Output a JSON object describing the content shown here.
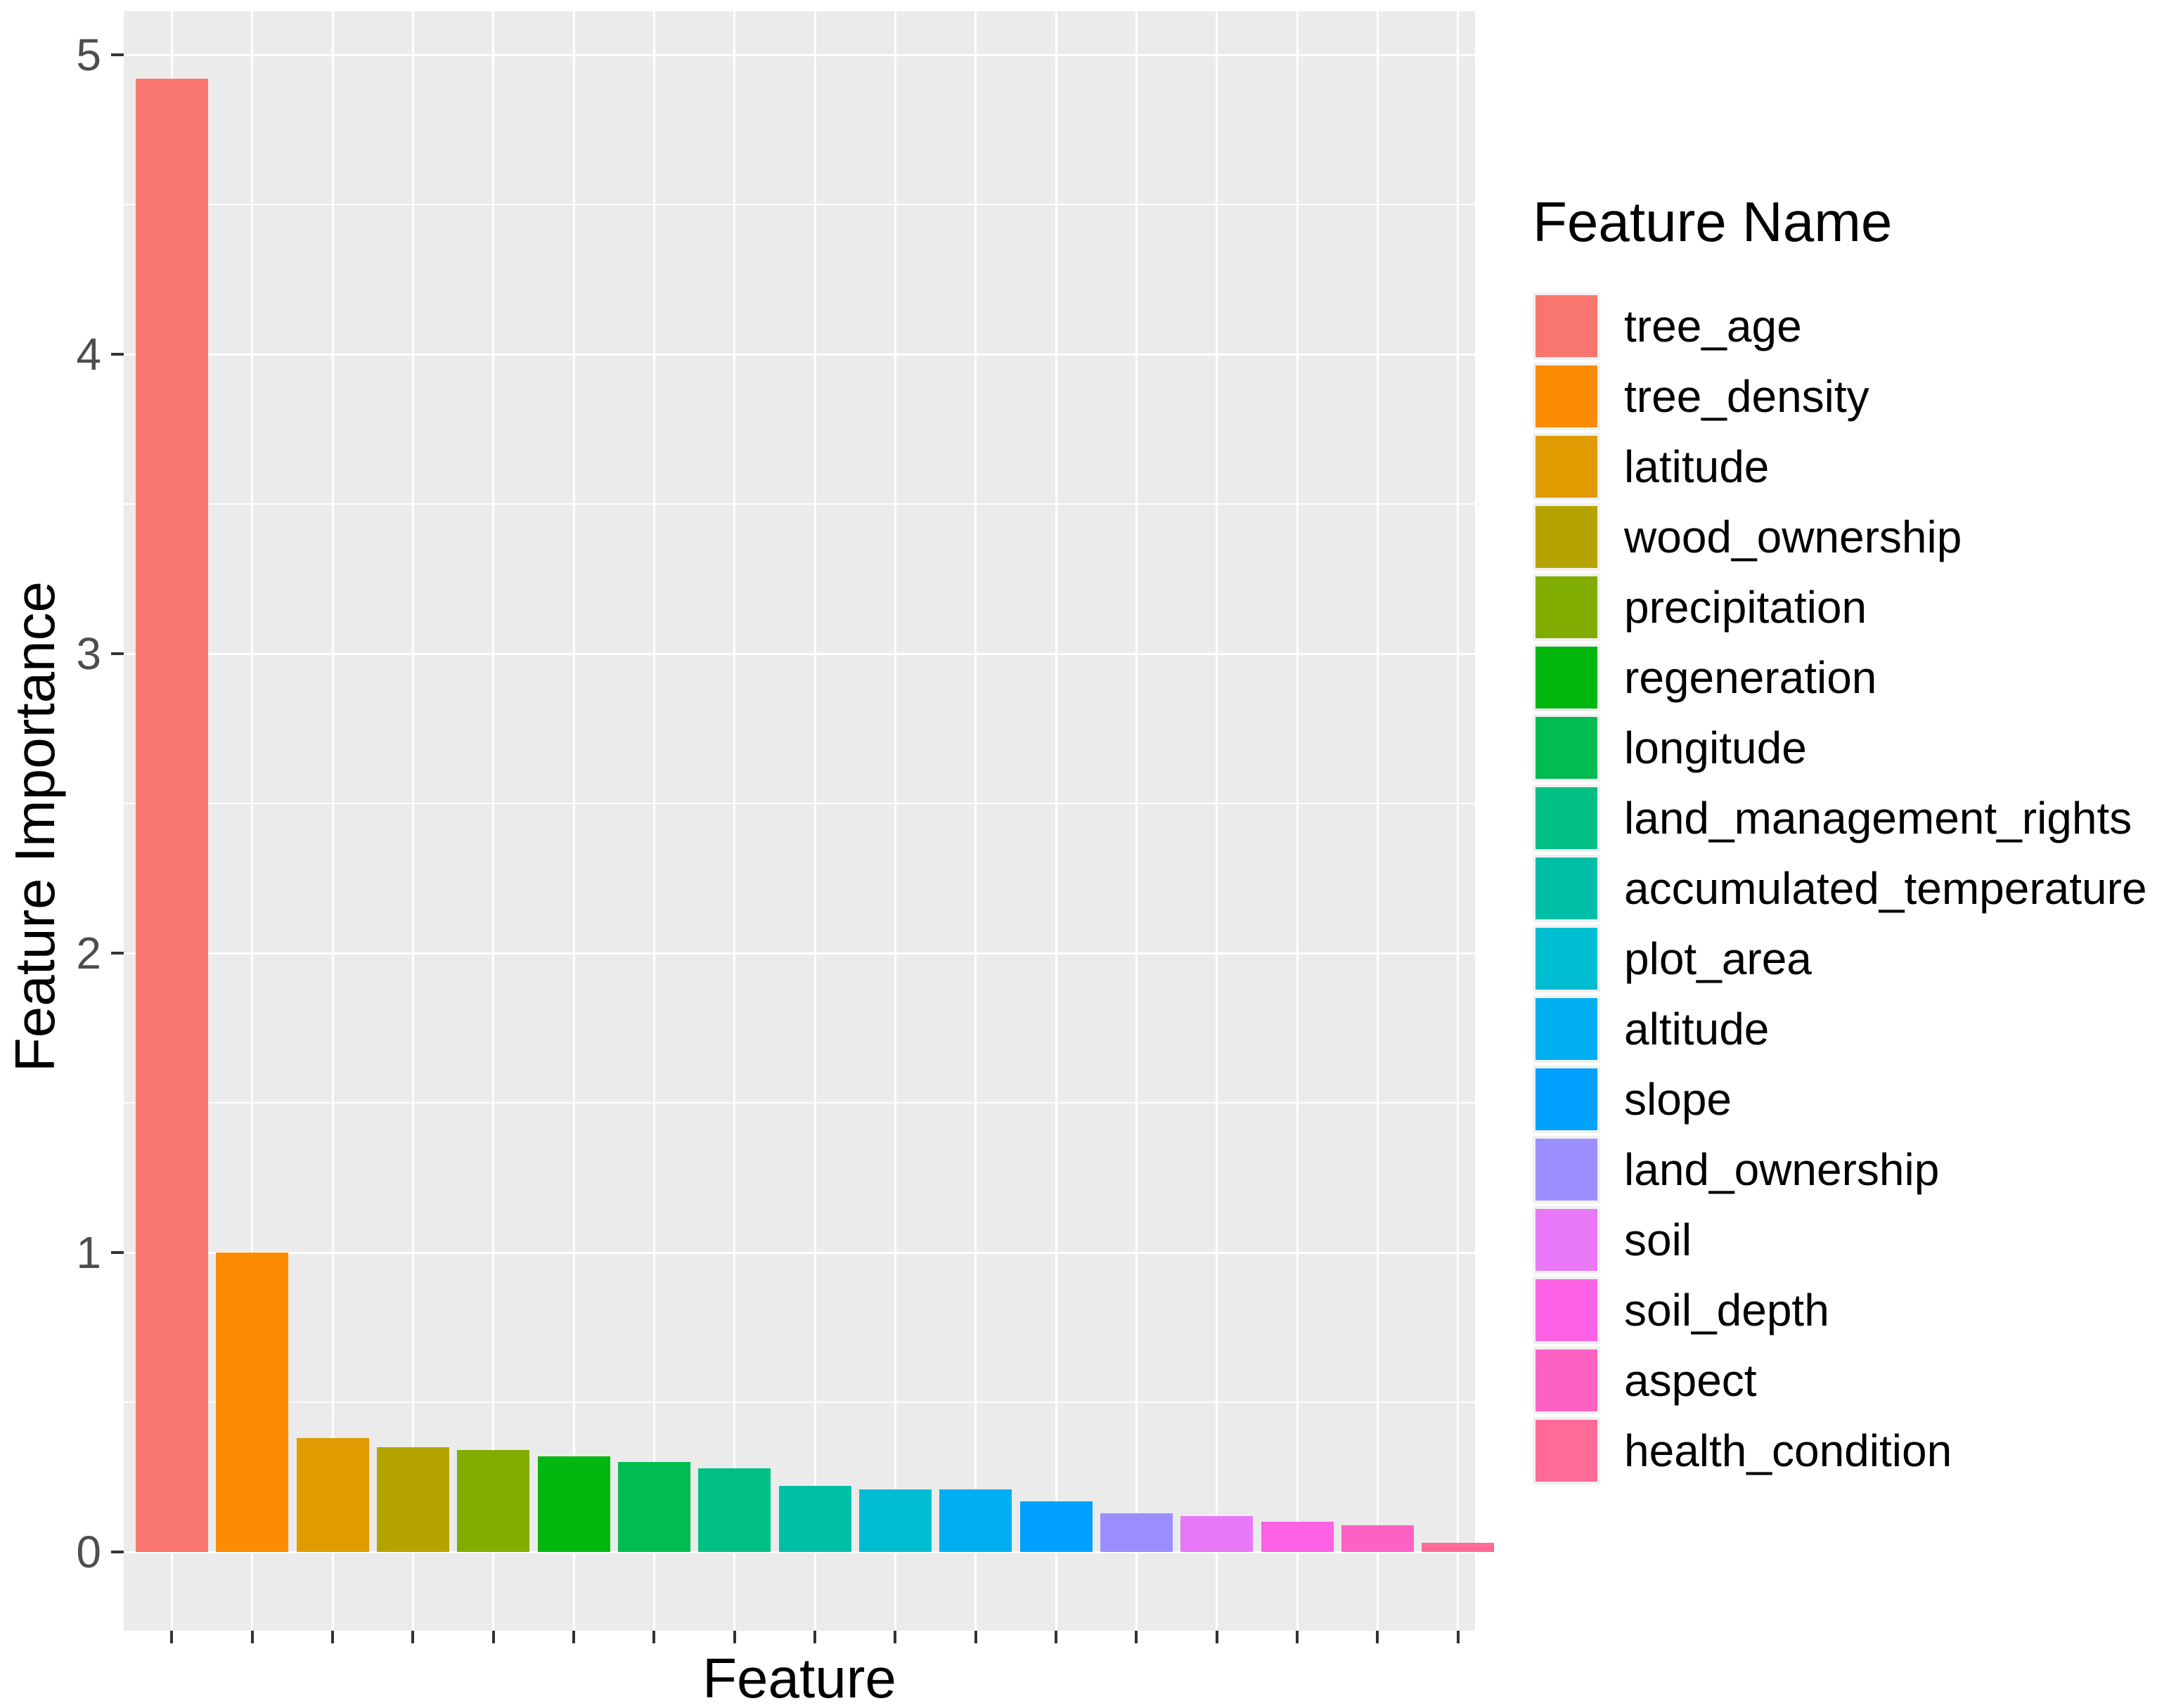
{
  "chart_data": {
    "type": "bar",
    "title": "",
    "xlabel": "Feature",
    "ylabel": "Feature Importance",
    "legend_title": "Feature Name",
    "legend_position": "right",
    "grid": true,
    "panel_background": "#EBEBEB",
    "gridline_color": "#FFFFFF",
    "tick_color": "#333333",
    "tick_label_color": "#4D4D4D",
    "ylim": [
      0,
      5
    ],
    "yticks": [
      0,
      1,
      2,
      3,
      4,
      5
    ],
    "x_tick_labels_shown": false,
    "categories": [
      "tree_age",
      "tree_density",
      "latitude",
      "wood_ownership",
      "precipitation",
      "regeneration",
      "longitude",
      "land_management_rights",
      "accumulated_temperature",
      "plot_area",
      "altitude",
      "slope",
      "land_ownership",
      "soil",
      "soil_depth",
      "aspect",
      "health_condition"
    ],
    "values": [
      4.92,
      1.0,
      0.38,
      0.35,
      0.34,
      0.32,
      0.3,
      0.28,
      0.22,
      0.21,
      0.21,
      0.17,
      0.13,
      0.12,
      0.1,
      0.09,
      0.03
    ],
    "colors": [
      "#F8766D",
      "#FB8B00",
      "#E09B00",
      "#B5A400",
      "#80AD00",
      "#00B80D",
      "#00BC51",
      "#00C084",
      "#00BFA8",
      "#00BED2",
      "#00AFF2",
      "#00A1FF",
      "#9B8FFF",
      "#E878F8",
      "#FC61E6",
      "#FD61C4",
      "#FF6A96"
    ]
  }
}
